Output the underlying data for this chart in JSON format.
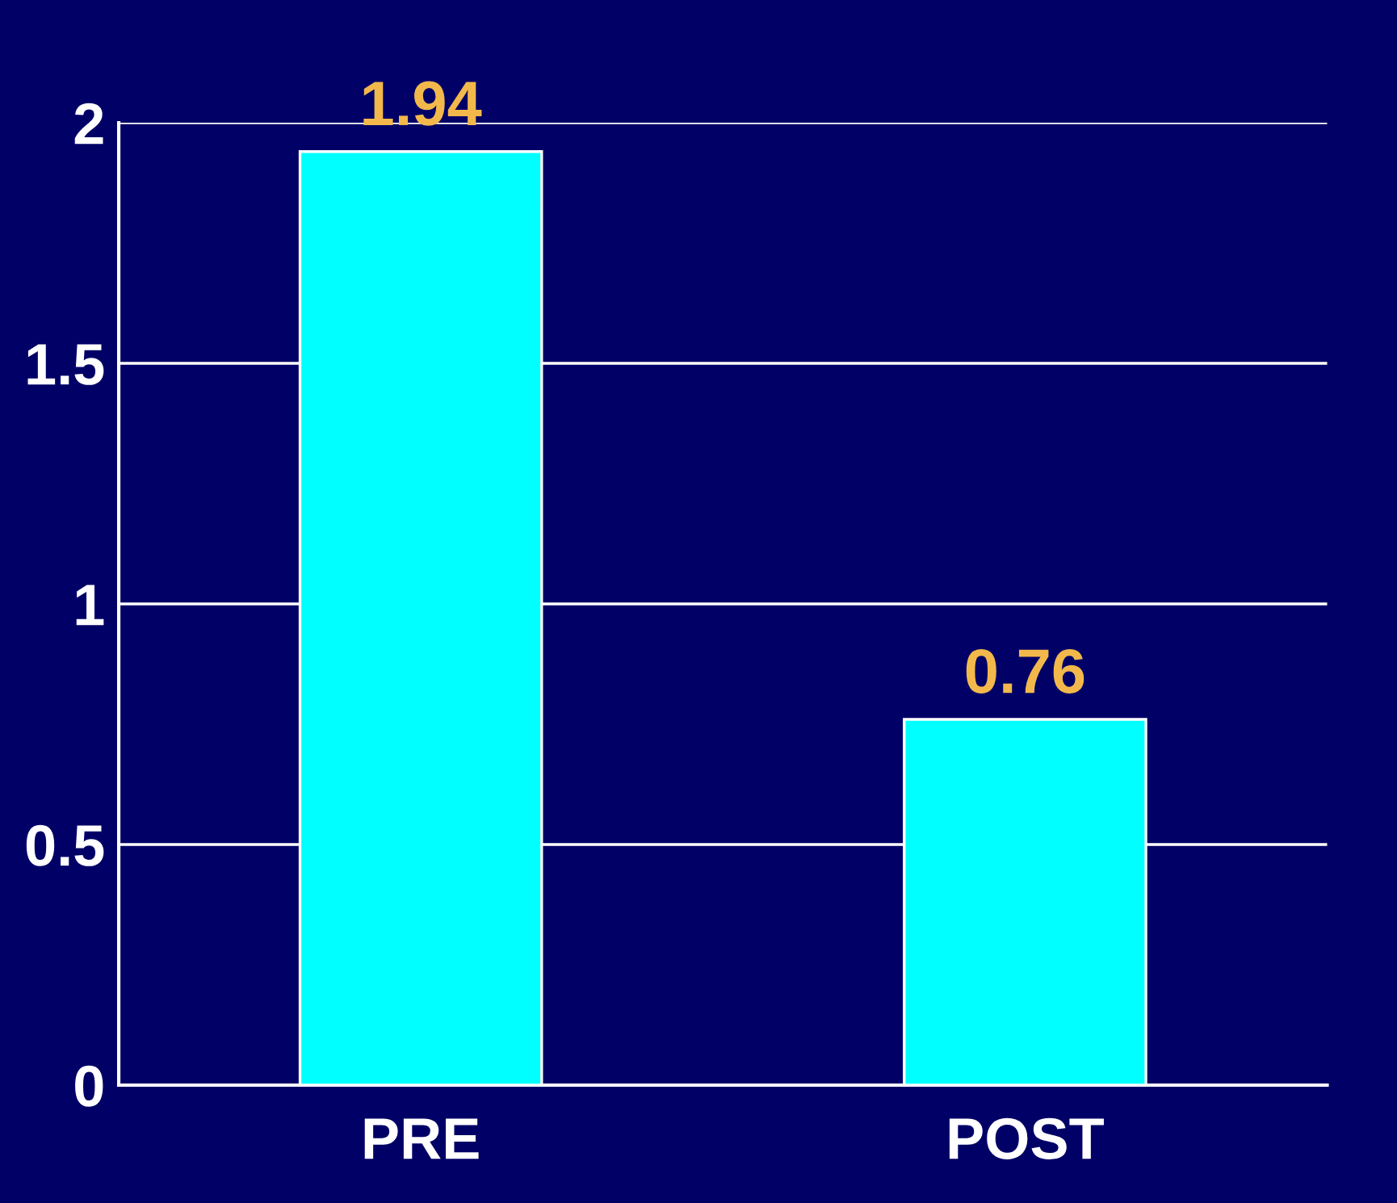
{
  "chart_data": {
    "type": "bar",
    "categories": [
      "PRE",
      "POST"
    ],
    "series": [
      {
        "color": "#00ffff",
        "values": [
          1.94,
          0.76
        ]
      }
    ],
    "ylim": [
      0,
      2
    ],
    "yticks": [
      0,
      0.5,
      1,
      1.5,
      2
    ],
    "grid": "y",
    "data_labels": true
  }
}
